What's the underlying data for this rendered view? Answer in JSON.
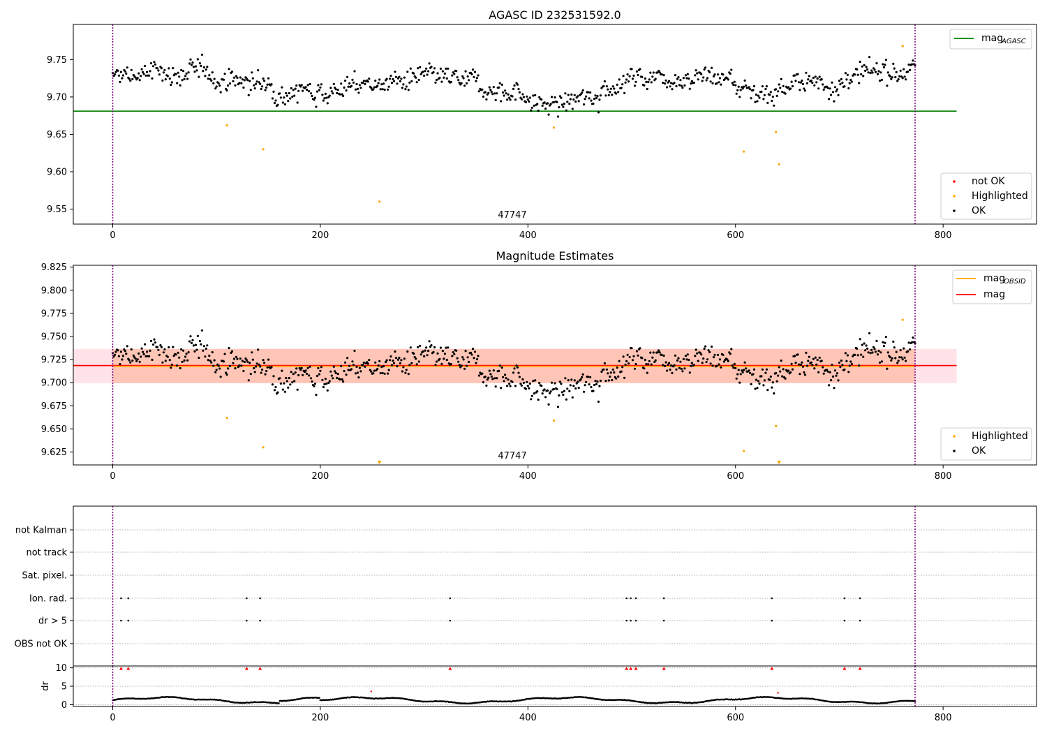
{
  "chart_data": [
    {
      "type": "scatter",
      "title": "AGASC ID 232531592.0",
      "xlim": [
        -38,
        890
      ],
      "ylim": [
        9.53,
        9.797
      ],
      "xticks": [
        0,
        200,
        400,
        600,
        800
      ],
      "yticks": [
        9.55,
        9.6,
        9.65,
        9.7,
        9.75
      ],
      "obs_label": "47747",
      "obs_boundaries": [
        0,
        773
      ],
      "mag_agasc": 9.681,
      "line_x_range": [
        0,
        813
      ],
      "legend_upper": [
        {
          "label": "mag",
          "sub": "AGASC",
          "color": "#008000"
        }
      ],
      "legend_lower": [
        {
          "label": "not OK",
          "color": "#ff0000"
        },
        {
          "label": "Highlighted",
          "color": "#ffa500"
        },
        {
          "label": "OK",
          "color": "#000000"
        }
      ],
      "highlighted_points": [
        [
          110,
          9.662
        ],
        [
          145,
          9.63
        ],
        [
          257,
          9.56
        ],
        [
          425,
          9.659
        ],
        [
          608,
          9.627
        ],
        [
          639,
          9.653
        ],
        [
          642,
          9.61
        ],
        [
          761,
          9.768
        ]
      ]
    },
    {
      "type": "scatter",
      "title": "Magnitude Estimates",
      "xlim": [
        -38,
        890
      ],
      "ylim": [
        9.611,
        9.827
      ],
      "xticks": [
        0,
        200,
        400,
        600,
        800
      ],
      "yticks": [
        9.625,
        9.65,
        9.675,
        9.7,
        9.725,
        9.75,
        9.775,
        9.8,
        9.825
      ],
      "obs_label": "47747",
      "obs_boundaries": [
        0,
        773
      ],
      "mag_obsid": 9.7177,
      "mag": 9.7185,
      "obs_band": [
        9.6995,
        9.7365
      ],
      "mag_band": [
        9.6995,
        9.7365
      ],
      "line_x_range": [
        0,
        813
      ],
      "legend_upper": [
        {
          "label": "mag",
          "sub": "OBSID",
          "color": "#ffa500"
        },
        {
          "label": "mag",
          "sub": "",
          "color": "#ff0000"
        }
      ],
      "legend_lower": [
        {
          "label": "Highlighted",
          "color": "#ffa500"
        },
        {
          "label": "OK",
          "color": "#000000"
        }
      ],
      "highlighted_points": [
        [
          110,
          9.662
        ],
        [
          145,
          9.63
        ],
        [
          425,
          9.659
        ],
        [
          608,
          9.626
        ],
        [
          639,
          9.653
        ],
        [
          761,
          9.768
        ]
      ],
      "clipped_markers": [
        257,
        642
      ]
    },
    {
      "type": "scatter",
      "xlim": [
        -38,
        890
      ],
      "flag_categories": [
        "not Kalman",
        "not track",
        "Sat. pixel.",
        "Ion. rad.",
        "dr > 5",
        "OBS not OK"
      ],
      "flag_points": {
        "Ion. rad.": [
          8,
          15,
          129,
          142,
          325,
          495,
          499,
          504,
          531,
          635,
          705,
          720
        ],
        "dr > 5": [
          8,
          15,
          129,
          142,
          325,
          495,
          499,
          504,
          531,
          635,
          705,
          720
        ]
      },
      "obs_boundaries": [
        0,
        773
      ]
    },
    {
      "type": "scatter",
      "ylabel": "dr",
      "xlim": [
        -38,
        890
      ],
      "ylim": [
        -0.5,
        10.5
      ],
      "xticks": [
        0,
        200,
        400,
        600,
        800
      ],
      "yticks": [
        0,
        5,
        10
      ],
      "clipped_dr_x": [
        8,
        15,
        129,
        142,
        325,
        495,
        499,
        504,
        531,
        635,
        705,
        720
      ],
      "outlier_points": [
        [
          249,
          3.6
        ],
        [
          641,
          3.2
        ]
      ],
      "dr_baseline": {
        "x_range": [
          0,
          773
        ],
        "min": 0.3,
        "max": 2.2
      }
    }
  ]
}
